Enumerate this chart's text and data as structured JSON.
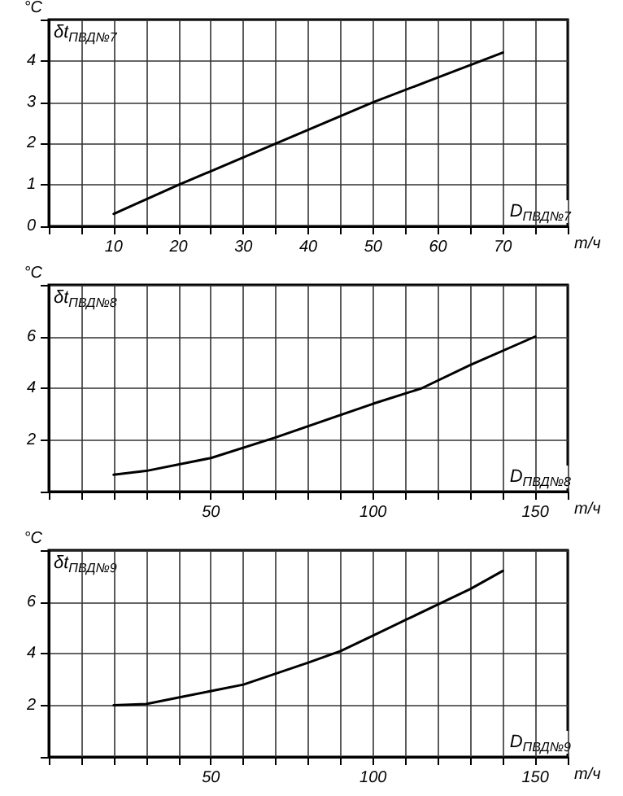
{
  "chart_data": [
    {
      "type": "line",
      "ylabel": "°C",
      "xlabel": "т/ч",
      "annotations": [
        "δt$_{ПВД№7}$",
        "D$_{ПВД№7}$"
      ],
      "color": "#000000",
      "marker": "none",
      "line_style": "solid",
      "grid": true,
      "x": [
        10,
        20,
        35,
        50,
        60,
        70
      ],
      "values": [
        0.3,
        1.0,
        2.0,
        3.0,
        3.6,
        4.2
      ],
      "xlim": [
        0,
        80
      ],
      "xticks": [
        {
          "value": 0,
          "label": null
        },
        {
          "value": 5,
          "label": null
        },
        10,
        {
          "value": 15,
          "label": null
        },
        20,
        {
          "value": 25,
          "label": null
        },
        30,
        {
          "value": 35,
          "label": null
        },
        40,
        {
          "value": 45,
          "label": null
        },
        50,
        {
          "value": 55,
          "label": null
        },
        60,
        {
          "value": 65,
          "label": null
        },
        70,
        {
          "value": 75,
          "label": null
        },
        {
          "value": 80,
          "label": null
        }
      ],
      "ylim": [
        0,
        5
      ],
      "yticks": [
        0,
        1,
        2,
        3,
        4,
        {
          "value": 5,
          "label": null
        }
      ]
    },
    {
      "type": "line",
      "ylabel": "°C",
      "xlabel": "т/ч",
      "annotations": [
        "δt$_{ПВД№8}$",
        "D$_{ПВД№8}$"
      ],
      "color": "#000000",
      "marker": "none",
      "line_style": "solid",
      "grid": true,
      "x": [
        20,
        30,
        50,
        70,
        100,
        115,
        130,
        150
      ],
      "values": [
        0.65,
        0.8,
        1.3,
        2.1,
        3.4,
        4.0,
        4.9,
        6.0
      ],
      "xlim": [
        0,
        160
      ],
      "xticks": [
        {
          "value": 0,
          "label": null
        },
        {
          "value": 10,
          "label": null
        },
        {
          "value": 20,
          "label": null
        },
        {
          "value": 30,
          "label": null
        },
        {
          "value": 40,
          "label": null
        },
        50,
        {
          "value": 60,
          "label": null
        },
        {
          "value": 70,
          "label": null
        },
        {
          "value": 80,
          "label": null
        },
        {
          "value": 90,
          "label": null
        },
        100,
        {
          "value": 110,
          "label": null
        },
        {
          "value": 120,
          "label": null
        },
        {
          "value": 130,
          "label": null
        },
        {
          "value": 140,
          "label": null
        },
        150,
        {
          "value": 160,
          "label": null
        }
      ],
      "ylim": [
        0,
        8
      ],
      "yticks": [
        {
          "value": 0,
          "label": null
        },
        2,
        4,
        6,
        {
          "value": 8,
          "label": null
        }
      ]
    },
    {
      "type": "line",
      "ylabel": "°C",
      "xlabel": "т/ч",
      "annotations": [
        "δt$_{ПВД№9}$",
        "D$_{ПВД№9}$"
      ],
      "color": "#000000",
      "marker": "none",
      "line_style": "solid",
      "grid": true,
      "x": [
        20,
        30,
        40,
        60,
        80,
        90,
        100,
        110,
        120,
        130,
        140
      ],
      "values": [
        2.0,
        2.05,
        2.3,
        2.8,
        3.65,
        4.1,
        4.7,
        5.3,
        5.9,
        6.5,
        7.2
      ],
      "xlim": [
        0,
        160
      ],
      "xticks": [
        {
          "value": 0,
          "label": null
        },
        {
          "value": 10,
          "label": null
        },
        {
          "value": 20,
          "label": null
        },
        {
          "value": 30,
          "label": null
        },
        {
          "value": 40,
          "label": null
        },
        50,
        {
          "value": 60,
          "label": null
        },
        {
          "value": 70,
          "label": null
        },
        {
          "value": 80,
          "label": null
        },
        {
          "value": 90,
          "label": null
        },
        100,
        {
          "value": 110,
          "label": null
        },
        {
          "value": 120,
          "label": null
        },
        {
          "value": 130,
          "label": null
        },
        {
          "value": 140,
          "label": null
        },
        150,
        {
          "value": 160,
          "label": null
        }
      ],
      "ylim": [
        0,
        8
      ],
      "yticks": [
        {
          "value": 0,
          "label": null
        },
        2,
        4,
        6,
        {
          "value": 8,
          "label": null
        }
      ]
    }
  ]
}
